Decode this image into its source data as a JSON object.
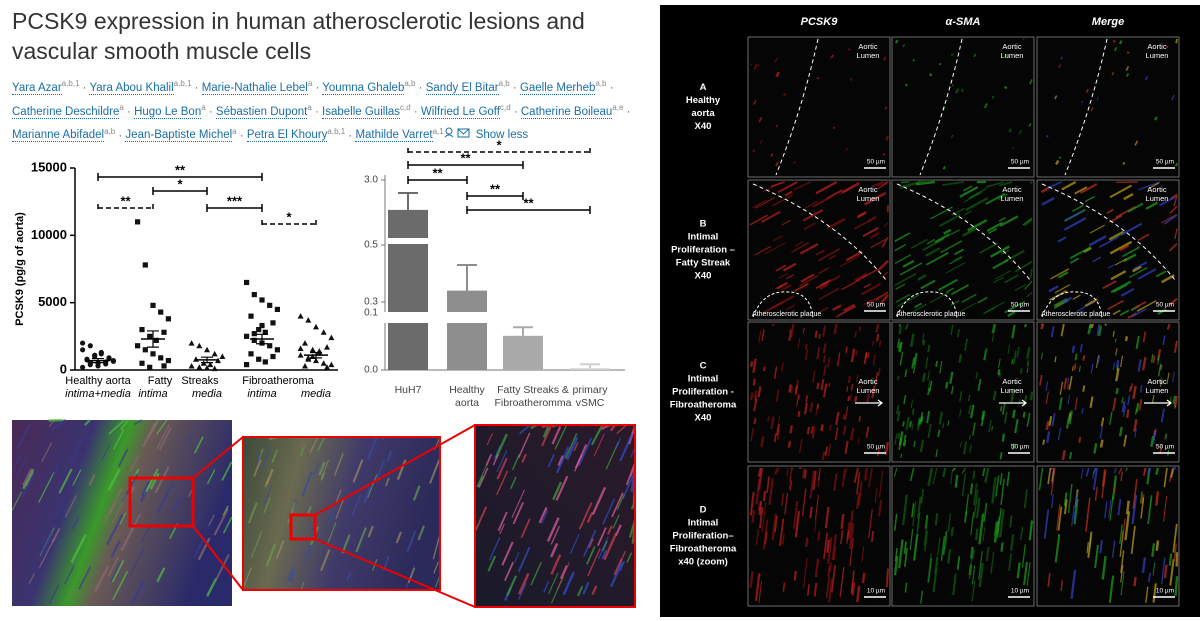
{
  "header": {
    "title": "PCSK9 expression in human atherosclerotic lesions and vascular smooth muscle cells",
    "authors": [
      {
        "name": "Yara Azar",
        "aff": "a,b,1"
      },
      {
        "name": "Yara Abou Khalil",
        "aff": "a,b,1"
      },
      {
        "name": "Marie-Nathalie Lebel",
        "aff": "a"
      },
      {
        "name": "Youmna Ghaleb",
        "aff": "a,b"
      },
      {
        "name": "Sandy El Bitar",
        "aff": "a,b"
      },
      {
        "name": "Gaelle Merheb",
        "aff": "a,b"
      },
      {
        "name": "Catherine Deschildre",
        "aff": "a"
      },
      {
        "name": "Hugo Le Bon",
        "aff": "a"
      },
      {
        "name": "Sébastien Dupont",
        "aff": "a"
      },
      {
        "name": "Isabelle Guillas",
        "aff": "c,d"
      },
      {
        "name": "Wilfried Le Goff",
        "aff": "c,d"
      },
      {
        "name": "Catherine Boileau",
        "aff": "a,e"
      },
      {
        "name": "Marianne Abifadel",
        "aff": "a,b"
      },
      {
        "name": "Jean-Baptiste Michel",
        "aff": "a"
      },
      {
        "name": "Petra El Khoury",
        "aff": "a,b,1"
      },
      {
        "name": "Mathilde Varret",
        "aff": "a,1"
      }
    ],
    "show_less": "Show less"
  },
  "scatter_chart": {
    "type": "scatter",
    "y_label": "PCSK9 (pg/g of aorta)",
    "ylim": [
      0,
      15000
    ],
    "yticks": [
      0,
      5000,
      10000,
      15000
    ],
    "category_labels": [
      "Healthy aorta",
      "Fatty",
      "Streaks",
      "Fibroatheroma"
    ],
    "groups": [
      {
        "sublabel": "intima+media",
        "marker": "circle",
        "mean": 700,
        "sem": 150,
        "values": [
          200,
          400,
          500,
          600,
          700,
          800,
          900,
          1000,
          1200,
          1500,
          1800,
          300,
          450,
          650,
          750,
          850,
          1100,
          1300,
          2000,
          550
        ]
      },
      {
        "sublabel": "intima",
        "marker": "square",
        "mean": 2300,
        "sem": 600,
        "values": [
          11000,
          7800,
          4800,
          4300,
          3800,
          3000,
          2800,
          2500,
          2200,
          1800,
          1500,
          1200,
          900,
          700,
          500,
          300,
          200
        ]
      },
      {
        "sublabel": "media",
        "marker": "triangle",
        "mean": 750,
        "sem": 200,
        "values": [
          2000,
          1800,
          1500,
          1200,
          1000,
          800,
          700,
          500,
          400,
          300,
          200,
          150,
          100
        ]
      },
      {
        "sublabel": "intima",
        "marker": "square",
        "mean": 2300,
        "sem": 350,
        "values": [
          6500,
          5600,
          5200,
          4800,
          4500,
          4000,
          3500,
          3000,
          2800,
          2500,
          2200,
          2000,
          1800,
          1500,
          1200,
          1000,
          800,
          600,
          400,
          2700,
          3300
        ]
      },
      {
        "sublabel": "media",
        "marker": "triangle",
        "mean": 1100,
        "sem": 200,
        "values": [
          4000,
          3700,
          3200,
          2800,
          2400,
          2000,
          1700,
          1500,
          1300,
          1100,
          900,
          700,
          500,
          400,
          300,
          200,
          1000,
          1400,
          1600,
          800
        ]
      }
    ],
    "significance": [
      "**",
      "**",
      "*",
      "***",
      "*"
    ]
  },
  "bar_chart": {
    "type": "bar",
    "ylim": [
      0,
      3
    ],
    "yticks": [
      {
        "value": 0,
        "label": "0.0"
      },
      {
        "value": 0.1,
        "label": "0.1"
      },
      {
        "value": 0.3,
        "label": "0.3"
      },
      {
        "value": 0.5,
        "label": "0.5"
      },
      {
        "value": 3,
        "label": "3.0"
      }
    ],
    "categories": [
      [
        "HuH7"
      ],
      [
        "Healthy",
        "aorta"
      ],
      [
        "Fatty Streaks &",
        "Fibroatheromma"
      ],
      [
        "primary",
        "vSMC"
      ]
    ],
    "values": [
      1.85,
      0.34,
      0.06,
      0.003
    ],
    "errors": [
      0.65,
      0.09,
      0.015,
      0.007
    ],
    "colors": [
      "#6b6b6b",
      "#8e8e8e",
      "#a9a9a9",
      "#cfcfcf"
    ],
    "significance": [
      "*",
      "**",
      "**",
      "**",
      "**"
    ]
  },
  "figure_panel": {
    "columns": [
      "PCSK9",
      "α-SMA",
      "Merge"
    ],
    "rows": [
      {
        "label": [
          "A",
          "Healthy",
          "aorta",
          "X40"
        ],
        "lumen": "Aortic Lumen",
        "scale": "50 µm"
      },
      {
        "label": [
          "B",
          "Intimal",
          "Proliferation –",
          "Fatty Streak",
          "X40"
        ],
        "lumen": "Aortic Lumen",
        "plaque": "Atherosclerotic plaque",
        "scale": "50 µm"
      },
      {
        "label": [
          "C",
          "Intimal",
          "Proliferation -",
          "Fibroatheroma",
          "X40"
        ],
        "lumen": "Aortic Lumen",
        "scale": "50 µm"
      },
      {
        "label": [
          "D",
          "Intimal",
          "Proliferation–",
          "Fibroatheroma",
          "x40 (zoom)"
        ],
        "scale": "10 µm"
      }
    ]
  }
}
